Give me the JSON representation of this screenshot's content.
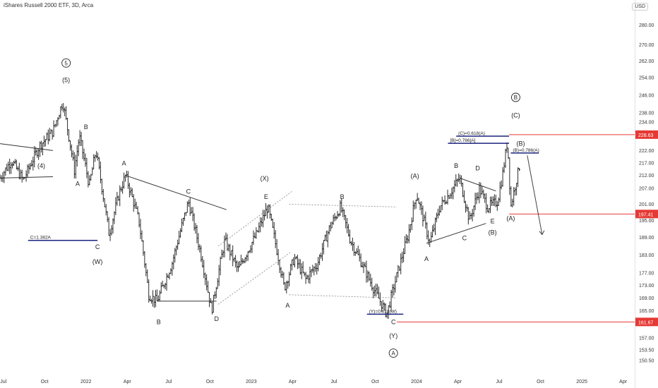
{
  "header": {
    "title": "iShares Russell 2000 ETF, 3D, Arca",
    "currency": "USD"
  },
  "colors": {
    "bar": "#2b2b2b",
    "price_line": "#e53935",
    "fib_line": "#1a237e",
    "trend": "#333333",
    "dotted": "#888888",
    "arrow": "#444444"
  },
  "chart_data": {
    "type": "ohlc",
    "title": "iShares Russell 2000 ETF, 3D, Arca",
    "ylim": [
      148,
      288
    ],
    "y_ticks": [
      150.5,
      153.5,
      157.0,
      161.0,
      165.0,
      169.0,
      173.0,
      177.0,
      183.0,
      189.0,
      195.0,
      201.0,
      207.0,
      212.0,
      217.0,
      222.0,
      228.0,
      234.0,
      238.0,
      246.0,
      254.0,
      262.0,
      270.0,
      280.0
    ],
    "y_tick_labels": [
      "150.50",
      "153.50",
      "157.00",
      "161.00",
      "165.00",
      "169.00",
      "173.00",
      "177.00",
      "183.00",
      "189.00",
      "195.00",
      "201.00",
      "207.00",
      "212.00",
      "217.00",
      "222.00",
      "228.00",
      "234.00",
      "238.00",
      "246.00",
      "254.00",
      "262.00",
      "270.00",
      "280.00"
    ],
    "x_ticks": [
      {
        "t": 2021.5,
        "label": "Jul"
      },
      {
        "t": 2021.75,
        "label": "Oct"
      },
      {
        "t": 2022.0,
        "label": "2022"
      },
      {
        "t": 2022.25,
        "label": "Apr"
      },
      {
        "t": 2022.5,
        "label": "Jul"
      },
      {
        "t": 2022.75,
        "label": "Oct"
      },
      {
        "t": 2023.0,
        "label": "2023"
      },
      {
        "t": 2023.25,
        "label": "Apr"
      },
      {
        "t": 2023.5,
        "label": "Jul"
      },
      {
        "t": 2023.75,
        "label": "Oct"
      },
      {
        "t": 2024.0,
        "label": "2024"
      },
      {
        "t": 2024.25,
        "label": "Apr"
      },
      {
        "t": 2024.5,
        "label": "Jul"
      },
      {
        "t": 2024.75,
        "label": "Oct"
      },
      {
        "t": 2025.0,
        "label": "2025"
      },
      {
        "t": 2025.25,
        "label": "Apr"
      }
    ],
    "anchors": [
      [
        2021.48,
        211
      ],
      [
        2021.55,
        218
      ],
      [
        2021.62,
        210
      ],
      [
        2021.72,
        224
      ],
      [
        2021.8,
        230
      ],
      [
        2021.86,
        243
      ],
      [
        2021.93,
        214
      ],
      [
        2021.96,
        228
      ],
      [
        2022.02,
        208
      ],
      [
        2022.06,
        222
      ],
      [
        2022.14,
        190
      ],
      [
        2022.2,
        205
      ],
      [
        2022.24,
        212
      ],
      [
        2022.32,
        195
      ],
      [
        2022.38,
        170
      ],
      [
        2022.43,
        168
      ],
      [
        2022.52,
        180
      ],
      [
        2022.62,
        202
      ],
      [
        2022.7,
        182
      ],
      [
        2022.76,
        165
      ],
      [
        2022.84,
        188
      ],
      [
        2022.92,
        178
      ],
      [
        2023.03,
        190
      ],
      [
        2023.1,
        200
      ],
      [
        2023.15,
        186
      ],
      [
        2023.2,
        172
      ],
      [
        2023.26,
        182
      ],
      [
        2023.33,
        175
      ],
      [
        2023.4,
        180
      ],
      [
        2023.47,
        192
      ],
      [
        2023.54,
        200
      ],
      [
        2023.6,
        188
      ],
      [
        2023.67,
        180
      ],
      [
        2023.74,
        172
      ],
      [
        2023.82,
        164
      ],
      [
        2023.89,
        178
      ],
      [
        2023.95,
        190
      ],
      [
        2024.0,
        205
      ],
      [
        2024.04,
        196
      ],
      [
        2024.08,
        187
      ],
      [
        2024.14,
        200
      ],
      [
        2024.2,
        205
      ],
      [
        2024.26,
        211
      ],
      [
        2024.32,
        195
      ],
      [
        2024.38,
        207
      ],
      [
        2024.43,
        200
      ],
      [
        2024.49,
        202
      ],
      [
        2024.52,
        212
      ],
      [
        2024.55,
        226
      ],
      [
        2024.57,
        200
      ],
      [
        2024.61,
        212
      ],
      [
        2024.63,
        218
      ]
    ],
    "price_lines": [
      {
        "value": 228.63,
        "label": "228.63"
      },
      {
        "value": 197.41,
        "label": "197.41"
      },
      {
        "value": 161.67,
        "label": "161.67"
      }
    ],
    "fib_levels": [
      {
        "t0": 2024.24,
        "t1": 2024.56,
        "value": 228.0,
        "label": "(C)=0.618(A)"
      },
      {
        "t0": 2024.19,
        "t1": 2024.56,
        "value": 225.0,
        "label": "[B]=0.786[A]"
      },
      {
        "t0": 2024.57,
        "t1": 2024.74,
        "value": 221.0,
        "label": "(B)=0.786(A)"
      },
      {
        "t0": 2021.65,
        "t1": 2022.07,
        "value": 188.0,
        "label": "C=1.382A"
      },
      {
        "t0": 2023.7,
        "t1": 2023.92,
        "value": 164.0,
        "label": "(Y)=0.618(W)"
      }
    ],
    "trend_lines": [
      {
        "t0": 2021.35,
        "v0": 226,
        "t1": 2021.8,
        "v1": 222
      },
      {
        "t0": 2021.48,
        "v0": 211,
        "t1": 2021.8,
        "v1": 211.5
      },
      {
        "t0": 2022.24,
        "v0": 212,
        "t1": 2022.85,
        "v1": 199
      },
      {
        "t0": 2022.43,
        "v0": 168,
        "t1": 2022.79,
        "v1": 168
      },
      {
        "t0": 2024.06,
        "v0": 187,
        "t1": 2024.42,
        "v1": 194
      },
      {
        "t0": 2024.26,
        "v0": 211,
        "t1": 2024.48,
        "v1": 206
      }
    ],
    "dotted_lines": [
      {
        "t0": 2022.8,
        "v0": 186,
        "t1": 2023.25,
        "v1": 206
      },
      {
        "t0": 2022.8,
        "v0": 167,
        "t1": 2023.24,
        "v1": 184
      },
      {
        "t0": 2023.23,
        "v0": 201,
        "t1": 2023.88,
        "v1": 200
      },
      {
        "t0": 2023.23,
        "v0": 170,
        "t1": 2023.88,
        "v1": 169
      }
    ],
    "forecast_arrow": {
      "t0": 2024.67,
      "v0": 220,
      "t1": 2024.76,
      "v1": 190
    },
    "annotations": [
      {
        "t": 2021.73,
        "v": 215,
        "text": "(4)"
      },
      {
        "t": 2021.88,
        "v": 260,
        "text": "5",
        "circled": true
      },
      {
        "t": 2021.88,
        "v": 252,
        "text": "(5)"
      },
      {
        "t": 2021.95,
        "v": 208,
        "text": "A"
      },
      {
        "t": 2022.0,
        "v": 231,
        "text": "B"
      },
      {
        "t": 2022.07,
        "v": 185,
        "text": "C"
      },
      {
        "t": 2022.07,
        "v": 180,
        "text": "(W)"
      },
      {
        "t": 2022.23,
        "v": 216,
        "text": "A"
      },
      {
        "t": 2022.44,
        "v": 161,
        "text": "B"
      },
      {
        "t": 2022.62,
        "v": 205,
        "text": "C"
      },
      {
        "t": 2022.79,
        "v": 162,
        "text": "D"
      },
      {
        "t": 2023.08,
        "v": 210,
        "text": "(X)"
      },
      {
        "t": 2023.09,
        "v": 203,
        "text": "E"
      },
      {
        "t": 2023.22,
        "v": 166,
        "text": "A"
      },
      {
        "t": 2023.55,
        "v": 203,
        "text": "B"
      },
      {
        "t": 2023.86,
        "v": 161,
        "text": "C"
      },
      {
        "t": 2023.86,
        "v": 157,
        "text": "(Y)"
      },
      {
        "t": 2023.86,
        "v": 152,
        "text": "A",
        "circled": true
      },
      {
        "t": 2023.99,
        "v": 211,
        "text": "(A)"
      },
      {
        "t": 2024.06,
        "v": 181,
        "text": "A"
      },
      {
        "t": 2024.24,
        "v": 215,
        "text": "B"
      },
      {
        "t": 2024.29,
        "v": 188,
        "text": "C"
      },
      {
        "t": 2024.37,
        "v": 214,
        "text": "D"
      },
      {
        "t": 2024.46,
        "v": 194,
        "text": "E"
      },
      {
        "t": 2024.46,
        "v": 190,
        "text": "(B)"
      },
      {
        "t": 2024.57,
        "v": 195,
        "text": "(A)"
      },
      {
        "t": 2024.6,
        "v": 244,
        "text": "B",
        "circled": true
      },
      {
        "t": 2024.6,
        "v": 236,
        "text": "(C)"
      },
      {
        "t": 2024.63,
        "v": 224,
        "text": "(B)"
      }
    ]
  }
}
